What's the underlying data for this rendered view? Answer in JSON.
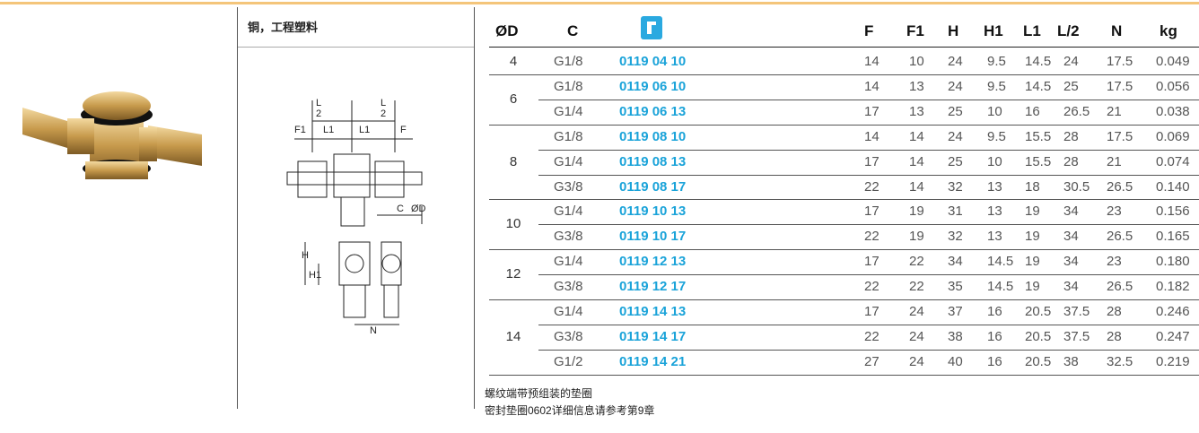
{
  "material": "铜，工程塑料",
  "drawing": {
    "labels": [
      "L",
      "2",
      "L",
      "2",
      "F1",
      "L1",
      "L1",
      "F",
      "C",
      "ØD",
      "H",
      "H1",
      "N"
    ]
  },
  "table": {
    "headers": [
      "ØD",
      "C",
      "F",
      "F1",
      "H",
      "H1",
      "L1",
      "L/2",
      "N",
      "kg"
    ],
    "groups": [
      {
        "diameter": "4",
        "rows": [
          [
            "G1/8",
            "0119 04 10",
            "14",
            "10",
            "24",
            "9.5",
            "14.5",
            "24",
            "17.5",
            "0.049"
          ]
        ]
      },
      {
        "diameter": "6",
        "rows": [
          [
            "G1/8",
            "0119 06 10",
            "14",
            "13",
            "24",
            "9.5",
            "14.5",
            "25",
            "17.5",
            "0.056"
          ],
          [
            "G1/4",
            "0119 06 13",
            "17",
            "13",
            "25",
            "10",
            "16",
            "26.5",
            "21",
            "0.038"
          ]
        ]
      },
      {
        "diameter": "8",
        "rows": [
          [
            "G1/8",
            "0119 08 10",
            "14",
            "14",
            "24",
            "9.5",
            "15.5",
            "28",
            "17.5",
            "0.069"
          ],
          [
            "G1/4",
            "0119 08 13",
            "17",
            "14",
            "25",
            "10",
            "15.5",
            "28",
            "21",
            "0.074"
          ],
          [
            "G3/8",
            "0119 08 17",
            "22",
            "14",
            "32",
            "13",
            "18",
            "30.5",
            "26.5",
            "0.140"
          ]
        ]
      },
      {
        "diameter": "10",
        "rows": [
          [
            "G1/4",
            "0119 10 13",
            "17",
            "19",
            "31",
            "13",
            "19",
            "34",
            "23",
            "0.156"
          ],
          [
            "G3/8",
            "0119 10 17",
            "22",
            "19",
            "32",
            "13",
            "19",
            "34",
            "26.5",
            "0.165"
          ]
        ]
      },
      {
        "diameter": "12",
        "rows": [
          [
            "G1/4",
            "0119 12 13",
            "17",
            "22",
            "34",
            "14.5",
            "19",
            "34",
            "23",
            "0.180"
          ],
          [
            "G3/8",
            "0119 12 17",
            "22",
            "22",
            "35",
            "14.5",
            "19",
            "34",
            "26.5",
            "0.182"
          ]
        ]
      },
      {
        "diameter": "14",
        "rows": [
          [
            "G1/4",
            "0119 14 13",
            "17",
            "24",
            "37",
            "16",
            "20.5",
            "37.5",
            "28",
            "0.246"
          ],
          [
            "G3/8",
            "0119 14 17",
            "22",
            "24",
            "38",
            "16",
            "20.5",
            "37.5",
            "28",
            "0.247"
          ],
          [
            "G1/2",
            "0119 14 21",
            "27",
            "24",
            "40",
            "16",
            "20.5",
            "38",
            "32.5",
            "0.219"
          ]
        ]
      }
    ]
  },
  "notes": [
    "螺纹端带预组装的垫圈",
    "密封垫圈0602详细信息请参考第9章"
  ]
}
